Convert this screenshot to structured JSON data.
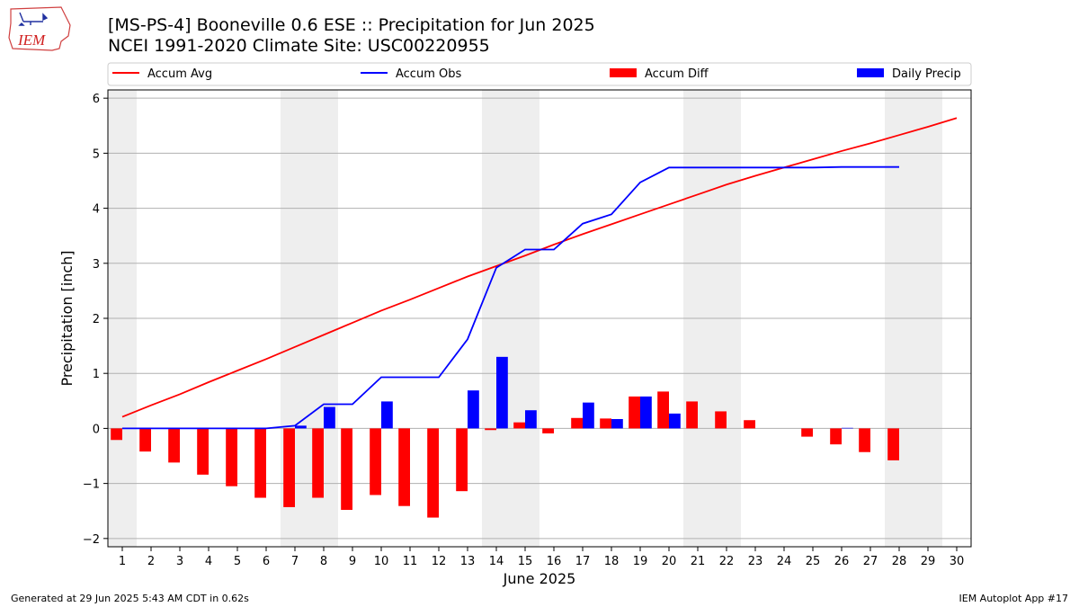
{
  "header": {
    "title_line1": "[MS-PS-4] Booneville 0.6 ESE :: Precipitation for Jun 2025",
    "title_line2": "NCEI 1991-2020 Climate Site: USC00220955",
    "logo_text": "IEM"
  },
  "footer": {
    "generated": "Generated at 29 Jun 2025 5:43 AM CDT in 0.62s",
    "app": "IEM Autoplot App #17"
  },
  "colors": {
    "avg": "#ff0000",
    "obs": "#0000ff",
    "diff": "#ff0000",
    "daily": "#0000ff",
    "weekend": "#eeeeee",
    "grid": "#b0b0b0"
  },
  "chart_data": {
    "type": "bar",
    "xlabel": "June 2025",
    "ylabel": "Precipitation [inch]",
    "ylim": [
      -2.15,
      6.15
    ],
    "yticks": [
      -2,
      -1,
      0,
      1,
      2,
      3,
      4,
      5,
      6
    ],
    "grid": "y",
    "legend_placement": "top",
    "legend": [
      "Accum Avg",
      "Accum Obs",
      "Accum Diff",
      "Daily Precip"
    ],
    "days": [
      1,
      2,
      3,
      4,
      5,
      6,
      7,
      8,
      9,
      10,
      11,
      12,
      13,
      14,
      15,
      16,
      17,
      18,
      19,
      20,
      21,
      22,
      23,
      24,
      25,
      26,
      27,
      28,
      29,
      30
    ],
    "weekend_days": [
      1,
      7,
      8,
      14,
      15,
      21,
      22,
      28,
      29
    ],
    "accum_avg": [
      0.21,
      0.42,
      0.62,
      0.84,
      1.05,
      1.26,
      1.48,
      1.7,
      1.92,
      2.14,
      2.34,
      2.55,
      2.76,
      2.95,
      3.14,
      3.34,
      3.53,
      3.71,
      3.89,
      4.07,
      4.25,
      4.43,
      4.59,
      4.74,
      4.89,
      5.04,
      5.18,
      5.33,
      5.48,
      5.64
    ],
    "accum_obs": [
      0.0,
      0.0,
      0.0,
      0.0,
      0.0,
      0.0,
      0.05,
      0.44,
      0.44,
      0.93,
      0.93,
      0.93,
      1.62,
      2.92,
      3.25,
      3.25,
      3.72,
      3.89,
      4.47,
      4.74,
      4.74,
      4.74,
      4.74,
      4.74,
      4.74,
      4.75,
      4.75,
      4.75
    ],
    "accum_diff": [
      -0.21,
      -0.42,
      -0.62,
      -0.84,
      -1.05,
      -1.26,
      -1.43,
      -1.26,
      -1.48,
      -1.21,
      -1.41,
      -1.62,
      -1.14,
      -0.03,
      0.11,
      -0.09,
      0.19,
      0.18,
      0.58,
      0.67,
      0.49,
      0.31,
      0.15,
      0.0,
      -0.15,
      -0.29,
      -0.43,
      -0.58,
      null,
      null
    ],
    "daily_precip": [
      0.0,
      0.0,
      0.0,
      0.0,
      0.0,
      0.0,
      0.05,
      0.39,
      0.0,
      0.49,
      0.0,
      0.0,
      0.69,
      1.3,
      0.33,
      0.0,
      0.47,
      0.17,
      0.58,
      0.27,
      0.0,
      0.0,
      0.0,
      0.0,
      0.0,
      0.01,
      0.0,
      0.0,
      null,
      null
    ]
  }
}
